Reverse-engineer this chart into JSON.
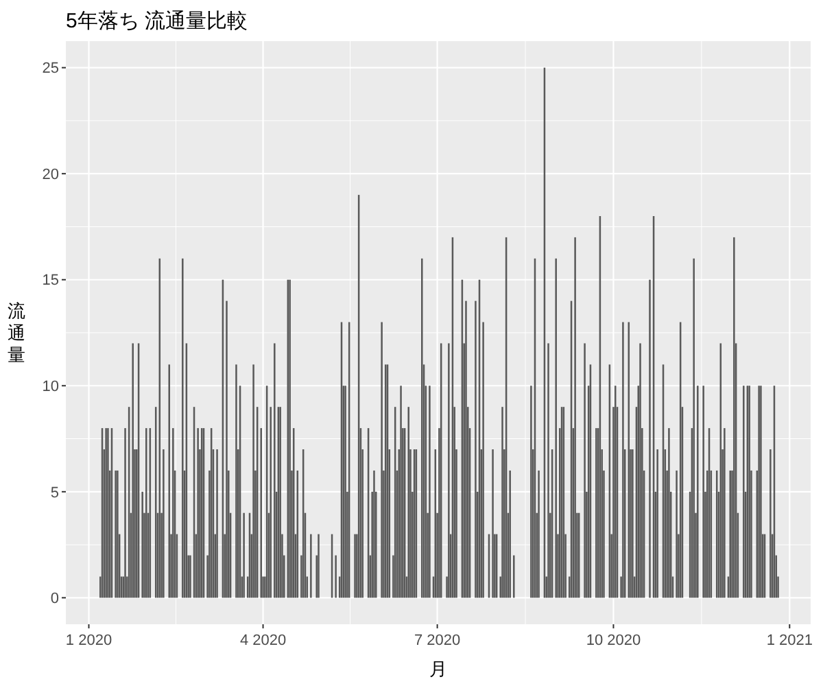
{
  "chart_data": {
    "type": "bar",
    "title": "5年落ち 流通量比較",
    "xlabel": "月",
    "ylabel": "流通量",
    "xlim": [
      "2019-12-20",
      "2021-01-12"
    ],
    "xticks": [
      {
        "value": "2020-01-01",
        "label": "1 2020"
      },
      {
        "value": "2020-04-01",
        "label": "4 2020"
      },
      {
        "value": "2020-07-01",
        "label": "7 2020"
      },
      {
        "value": "2020-10-01",
        "label": "10 2020"
      },
      {
        "value": "2021-01-01",
        "label": "1 2021"
      }
    ],
    "ylim": [
      -1.25,
      26.25
    ],
    "yticks": [
      0,
      5,
      10,
      15,
      20,
      25
    ],
    "grid": true,
    "x": [
      "2020-01-07",
      "2020-01-08",
      "2020-01-09",
      "2020-01-10",
      "2020-01-11",
      "2020-01-12",
      "2020-01-13",
      "2020-01-14",
      "2020-01-15",
      "2020-01-16",
      "2020-01-17",
      "2020-01-18",
      "2020-01-19",
      "2020-01-20",
      "2020-01-21",
      "2020-01-22",
      "2020-01-23",
      "2020-01-24",
      "2020-01-25",
      "2020-01-26",
      "2020-01-27",
      "2020-01-28",
      "2020-01-29",
      "2020-01-30",
      "2020-01-31",
      "2020-02-01",
      "2020-02-02",
      "2020-02-03",
      "2020-02-04",
      "2020-02-05",
      "2020-02-06",
      "2020-02-07",
      "2020-02-08",
      "2020-02-09",
      "2020-02-10",
      "2020-02-11",
      "2020-02-12",
      "2020-02-13",
      "2020-02-14",
      "2020-02-15",
      "2020-02-16",
      "2020-02-17",
      "2020-02-18",
      "2020-02-19",
      "2020-02-20",
      "2020-02-21",
      "2020-02-22",
      "2020-02-23",
      "2020-02-24",
      "2020-02-25",
      "2020-02-26",
      "2020-02-27",
      "2020-02-28",
      "2020-02-29",
      "2020-03-01",
      "2020-03-02",
      "2020-03-03",
      "2020-03-04",
      "2020-03-05",
      "2020-03-06",
      "2020-03-07",
      "2020-03-08",
      "2020-03-09",
      "2020-03-10",
      "2020-03-11",
      "2020-03-12",
      "2020-03-13",
      "2020-03-14",
      "2020-03-15",
      "2020-03-16",
      "2020-03-17",
      "2020-03-18",
      "2020-03-19",
      "2020-03-20",
      "2020-03-21",
      "2020-03-22",
      "2020-03-23",
      "2020-03-24",
      "2020-03-25",
      "2020-03-26",
      "2020-03-27",
      "2020-03-28",
      "2020-03-29",
      "2020-03-30",
      "2020-03-31",
      "2020-04-01",
      "2020-04-02",
      "2020-04-03",
      "2020-04-04",
      "2020-04-05",
      "2020-04-06",
      "2020-04-07",
      "2020-04-08",
      "2020-04-09",
      "2020-04-10",
      "2020-04-11",
      "2020-04-12",
      "2020-04-13",
      "2020-04-14",
      "2020-04-15",
      "2020-04-16",
      "2020-04-17",
      "2020-04-18",
      "2020-04-19",
      "2020-04-20",
      "2020-04-21",
      "2020-04-22",
      "2020-04-23",
      "2020-04-24",
      "2020-04-25",
      "2020-04-26",
      "2020-04-27",
      "2020-04-28",
      "2020-04-29",
      "2020-04-30",
      "2020-05-01",
      "2020-05-02",
      "2020-05-03",
      "2020-05-04",
      "2020-05-05",
      "2020-05-06",
      "2020-05-07",
      "2020-05-08",
      "2020-05-09",
      "2020-05-10",
      "2020-05-11",
      "2020-05-12",
      "2020-05-13",
      "2020-05-14",
      "2020-05-15",
      "2020-05-16",
      "2020-05-17",
      "2020-05-18",
      "2020-05-19",
      "2020-05-20",
      "2020-05-21",
      "2020-05-22",
      "2020-05-23",
      "2020-05-24",
      "2020-05-25",
      "2020-05-26",
      "2020-05-27",
      "2020-05-28",
      "2020-05-29",
      "2020-05-30",
      "2020-05-31",
      "2020-06-01",
      "2020-06-02",
      "2020-06-03",
      "2020-06-04",
      "2020-06-05",
      "2020-06-06",
      "2020-06-07",
      "2020-06-08",
      "2020-06-09",
      "2020-06-10",
      "2020-06-11",
      "2020-06-12",
      "2020-06-13",
      "2020-06-14",
      "2020-06-15",
      "2020-06-16",
      "2020-06-17",
      "2020-06-18",
      "2020-06-19",
      "2020-06-20",
      "2020-06-21",
      "2020-06-22",
      "2020-06-23",
      "2020-06-24",
      "2020-06-25",
      "2020-06-26",
      "2020-06-27",
      "2020-06-28",
      "2020-06-29",
      "2020-06-30",
      "2020-07-01",
      "2020-07-02",
      "2020-07-03",
      "2020-07-04",
      "2020-07-05",
      "2020-07-06",
      "2020-07-07",
      "2020-07-08",
      "2020-07-09",
      "2020-07-10",
      "2020-07-11",
      "2020-07-12",
      "2020-07-13",
      "2020-07-14",
      "2020-07-15",
      "2020-07-16",
      "2020-07-17",
      "2020-07-18",
      "2020-07-19",
      "2020-07-20",
      "2020-07-21",
      "2020-07-22",
      "2020-07-23",
      "2020-07-24",
      "2020-07-25",
      "2020-07-26",
      "2020-07-27",
      "2020-07-28",
      "2020-07-29",
      "2020-07-30",
      "2020-07-31",
      "2020-08-01",
      "2020-08-02",
      "2020-08-03",
      "2020-08-04",
      "2020-08-05",
      "2020-08-06",
      "2020-08-07",
      "2020-08-08",
      "2020-08-09",
      "2020-08-10",
      "2020-08-11",
      "2020-08-12",
      "2020-08-13",
      "2020-08-14",
      "2020-08-15",
      "2020-08-16",
      "2020-08-17",
      "2020-08-18",
      "2020-08-19",
      "2020-08-20",
      "2020-08-21",
      "2020-08-22",
      "2020-08-23",
      "2020-08-24",
      "2020-08-25",
      "2020-08-26",
      "2020-08-27",
      "2020-08-28",
      "2020-08-29",
      "2020-08-30",
      "2020-08-31",
      "2020-09-01",
      "2020-09-02",
      "2020-09-03",
      "2020-09-04",
      "2020-09-05",
      "2020-09-06",
      "2020-09-07",
      "2020-09-08",
      "2020-09-09",
      "2020-09-10",
      "2020-09-11",
      "2020-09-12",
      "2020-09-13",
      "2020-09-14",
      "2020-09-15",
      "2020-09-16",
      "2020-09-17",
      "2020-09-18",
      "2020-09-19",
      "2020-09-20",
      "2020-09-21",
      "2020-09-22",
      "2020-09-23",
      "2020-09-24",
      "2020-09-25",
      "2020-09-26",
      "2020-09-27",
      "2020-09-28",
      "2020-09-29",
      "2020-09-30",
      "2020-10-01",
      "2020-10-02",
      "2020-10-03",
      "2020-10-04",
      "2020-10-05",
      "2020-10-06",
      "2020-10-07",
      "2020-10-08",
      "2020-10-09",
      "2020-10-10",
      "2020-10-11",
      "2020-10-12",
      "2020-10-13",
      "2020-10-14",
      "2020-10-15",
      "2020-10-16",
      "2020-10-17",
      "2020-10-18",
      "2020-10-19",
      "2020-10-20",
      "2020-10-21",
      "2020-10-22",
      "2020-10-23",
      "2020-10-24",
      "2020-10-25",
      "2020-10-26",
      "2020-10-27",
      "2020-10-28",
      "2020-10-29",
      "2020-10-30",
      "2020-10-31",
      "2020-11-01",
      "2020-11-02",
      "2020-11-03",
      "2020-11-04",
      "2020-11-05",
      "2020-11-06",
      "2020-11-07",
      "2020-11-08",
      "2020-11-09",
      "2020-11-10",
      "2020-11-11",
      "2020-11-12",
      "2020-11-13",
      "2020-11-14",
      "2020-11-15",
      "2020-11-16",
      "2020-11-17",
      "2020-11-18",
      "2020-11-19",
      "2020-11-20",
      "2020-11-21",
      "2020-11-22",
      "2020-11-23",
      "2020-11-24",
      "2020-11-25",
      "2020-11-26",
      "2020-11-27",
      "2020-11-28",
      "2020-11-29",
      "2020-11-30",
      "2020-12-01",
      "2020-12-02",
      "2020-12-03",
      "2020-12-04",
      "2020-12-05",
      "2020-12-06",
      "2020-12-07",
      "2020-12-08",
      "2020-12-09",
      "2020-12-10",
      "2020-12-11",
      "2020-12-12",
      "2020-12-13",
      "2020-12-14",
      "2020-12-15",
      "2020-12-16",
      "2020-12-17",
      "2020-12-18",
      "2020-12-19",
      "2020-12-20",
      "2020-12-21",
      "2020-12-22",
      "2020-12-23",
      "2020-12-24",
      "2020-12-25",
      "2020-12-26"
    ],
    "series": [
      {
        "color": "#595959",
        "values": [
          1,
          8,
          7,
          8,
          8,
          6,
          8,
          null,
          6,
          6,
          3,
          1,
          1,
          8,
          1,
          9,
          4,
          12,
          7,
          7,
          12,
          null,
          5,
          4,
          8,
          4,
          8,
          null,
          null,
          9,
          4,
          16,
          4,
          7,
          null,
          null,
          11,
          3,
          8,
          6,
          3,
          null,
          null,
          16,
          6,
          12,
          2,
          2,
          null,
          9,
          3,
          8,
          7,
          8,
          8,
          null,
          2,
          6,
          8,
          7,
          3,
          7,
          null,
          null,
          15,
          3,
          14,
          6,
          4,
          null,
          null,
          11,
          7,
          10,
          1,
          4,
          null,
          1,
          4,
          3,
          11,
          6,
          9,
          null,
          8,
          1,
          1,
          10,
          4,
          9,
          null,
          12,
          5,
          9,
          9,
          3,
          2,
          null,
          15,
          15,
          6,
          8,
          3,
          6,
          null,
          2,
          7,
          4,
          1,
          null,
          3,
          null,
          null,
          2,
          3,
          null,
          null,
          null,
          null,
          null,
          null,
          3,
          null,
          2,
          null,
          1,
          13,
          10,
          10,
          5,
          13,
          null,
          null,
          3,
          3,
          19,
          8,
          7,
          null,
          null,
          8,
          2,
          5,
          6,
          5,
          null,
          null,
          13,
          6,
          11,
          11,
          7,
          null,
          2,
          9,
          6,
          7,
          10,
          8,
          8,
          1,
          9,
          7,
          5,
          7,
          7,
          null,
          null,
          16,
          11,
          10,
          4,
          10,
          null,
          1,
          7,
          4,
          8,
          12,
          null,
          null,
          1,
          12,
          3,
          17,
          9,
          7,
          null,
          null,
          15,
          12,
          14,
          9,
          8,
          null,
          null,
          14,
          5,
          15,
          7,
          13,
          null,
          null,
          3,
          null,
          7,
          3,
          3,
          null,
          1,
          9,
          7,
          17,
          4,
          6,
          null,
          2,
          null,
          null,
          null,
          null,
          null,
          null,
          null,
          null,
          10,
          7,
          16,
          4,
          6,
          null,
          null,
          25,
          1,
          12,
          4,
          7,
          null,
          16,
          3,
          8,
          9,
          9,
          3,
          null,
          1,
          14,
          8,
          17,
          4,
          4,
          null,
          null,
          12,
          5,
          10,
          11,
          null,
          null,
          8,
          8,
          18,
          7,
          6,
          null,
          null,
          11,
          3,
          9,
          10,
          9,
          null,
          1,
          13,
          7,
          null,
          13,
          7,
          7,
          1,
          9,
          10,
          12,
          8,
          6,
          null,
          null,
          15,
          null,
          18,
          5,
          7,
          null,
          null,
          11,
          7,
          6,
          8,
          5,
          1,
          null,
          6,
          3,
          13,
          9,
          null,
          null,
          null,
          5,
          8,
          16,
          4,
          10,
          null,
          null,
          10,
          5,
          6,
          8,
          6,
          null,
          null,
          6,
          5,
          12,
          7,
          8,
          null,
          1,
          6,
          6,
          17,
          12,
          4,
          null,
          null,
          10,
          5,
          10,
          10,
          6,
          null,
          null,
          6,
          10,
          10,
          3,
          3,
          null,
          null,
          7,
          3,
          10,
          2,
          1
        ]
      }
    ]
  }
}
